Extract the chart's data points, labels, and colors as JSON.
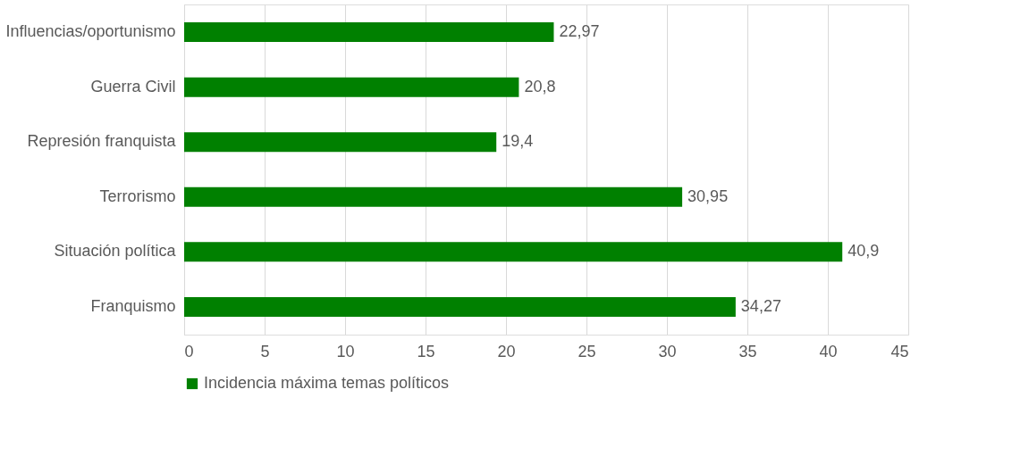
{
  "chart_data": {
    "type": "bar",
    "orientation": "horizontal",
    "categories": [
      "Influencias/oportunismo",
      "Guerra Civil",
      "Represión franquista",
      "Terrorismo",
      "Situación política",
      "Franquismo"
    ],
    "series": [
      {
        "name": "Incidencia máxima temas políticos",
        "color": "#008000",
        "values": [
          22.97,
          20.8,
          19.4,
          30.95,
          40.9,
          34.27
        ],
        "value_labels": [
          "22,97",
          "20,8",
          "19,4",
          "30,95",
          "40,9",
          "34,27"
        ]
      }
    ],
    "xlim": [
      0,
      45
    ],
    "xticks": [
      0,
      5,
      10,
      15,
      20,
      25,
      30,
      35,
      40,
      45
    ],
    "grid": "x",
    "legend": "bottom"
  }
}
